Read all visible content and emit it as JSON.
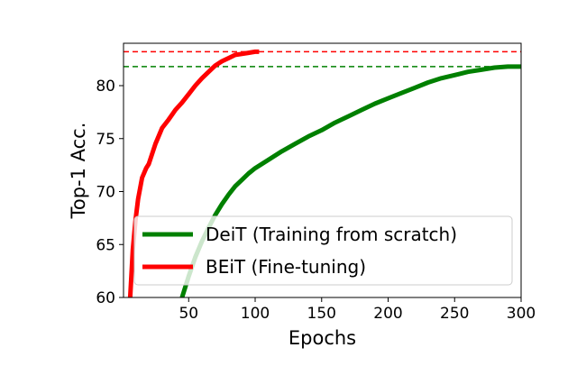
{
  "chart_data": {
    "type": "line",
    "title": "",
    "xlabel": "Epochs",
    "ylabel": "Top-1 Acc.",
    "xlim": [
      1,
      300
    ],
    "ylim": [
      60,
      84
    ],
    "x_ticks": [
      50,
      100,
      150,
      200,
      250,
      300
    ],
    "y_ticks": [
      60,
      65,
      70,
      75,
      80
    ],
    "grid": false,
    "legend_placement": "lower-right",
    "series": [
      {
        "name": "DeiT (Training from scratch)",
        "color": "#008000",
        "x": [
          45,
          50,
          55,
          60,
          65,
          70,
          75,
          80,
          85,
          90,
          95,
          100,
          110,
          120,
          130,
          140,
          150,
          160,
          170,
          180,
          190,
          200,
          210,
          220,
          230,
          240,
          250,
          260,
          270,
          280,
          290,
          300
        ],
        "y": [
          60.0,
          62.0,
          63.8,
          65.3,
          66.6,
          67.8,
          68.8,
          69.7,
          70.5,
          71.1,
          71.7,
          72.2,
          73.0,
          73.8,
          74.5,
          75.2,
          75.8,
          76.5,
          77.1,
          77.7,
          78.3,
          78.8,
          79.3,
          79.8,
          80.3,
          80.7,
          81.0,
          81.3,
          81.5,
          81.7,
          81.8,
          81.8
        ]
      },
      {
        "name": "BEiT (Fine-tuning)",
        "color": "#ff0000",
        "x": [
          6,
          8,
          10,
          12,
          15,
          18,
          20,
          25,
          30,
          35,
          40,
          45,
          50,
          55,
          60,
          65,
          70,
          75,
          80,
          85,
          90,
          95,
          100,
          103
        ],
        "y": [
          60.0,
          64.5,
          67.3,
          69.3,
          71.3,
          72.2,
          72.6,
          74.5,
          76.0,
          76.8,
          77.7,
          78.4,
          79.2,
          80.0,
          80.7,
          81.3,
          81.9,
          82.3,
          82.6,
          82.9,
          83.0,
          83.1,
          83.2,
          83.2
        ]
      }
    ],
    "reference_lines": [
      {
        "y": 81.8,
        "color": "#008000",
        "style": "dashed"
      },
      {
        "y": 83.2,
        "color": "#ff0000",
        "style": "dashed"
      }
    ]
  }
}
